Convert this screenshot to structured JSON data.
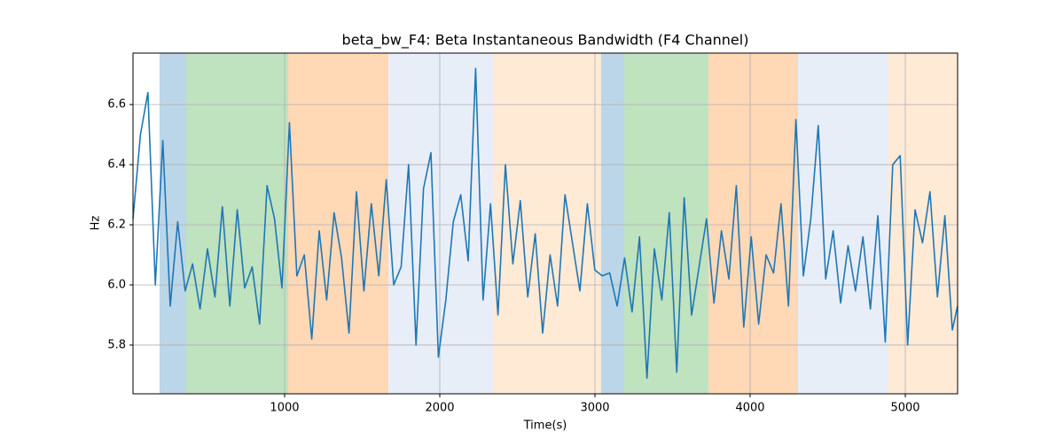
{
  "chart_data": {
    "type": "line",
    "title": "beta_bw_F4: Beta Instantaneous Bandwidth (F4 Channel)",
    "x_label": "Time(s)",
    "y_label": "Hz",
    "xlim": [
      23,
      5337
    ],
    "ylim": [
      5.638,
      6.771
    ],
    "xticks": [
      1000,
      2000,
      3000,
      4000,
      5000
    ],
    "yticks": [
      5.8,
      {
        "value": 6,
        "label": "6.0"
      },
      6.2,
      6.4,
      6.6
    ],
    "grid": true,
    "spans": [
      {
        "start": 194,
        "end": 366,
        "color": "#1f77b4",
        "alpha": 0.3
      },
      {
        "start": 366,
        "end": 1023,
        "color": "#2ca02c",
        "alpha": 0.3
      },
      {
        "start": 1023,
        "end": 1669,
        "color": "#ff7f0e",
        "alpha": 0.3
      },
      {
        "start": 1669,
        "end": 2343,
        "color": "#aec7e8",
        "alpha": 0.3
      },
      {
        "start": 2343,
        "end": 3040,
        "color": "#ffbb78",
        "alpha": 0.3
      },
      {
        "start": 3040,
        "end": 3189,
        "color": "#1f77b4",
        "alpha": 0.3
      },
      {
        "start": 3189,
        "end": 3731,
        "color": "#2ca02c",
        "alpha": 0.3
      },
      {
        "start": 3731,
        "end": 4309,
        "color": "#ff7f0e",
        "alpha": 0.3
      },
      {
        "start": 4309,
        "end": 4891,
        "color": "#aec7e8",
        "alpha": 0.3
      },
      {
        "start": 4891,
        "end": 5337,
        "color": "#ffbb78",
        "alpha": 0.3
      }
    ],
    "x": [
      23,
      71,
      119,
      167,
      215,
      263,
      311,
      359,
      407,
      455,
      503,
      551,
      599,
      647,
      695,
      743,
      791,
      839,
      887,
      935,
      983,
      1031,
      1079,
      1127,
      1175,
      1223,
      1271,
      1319,
      1367,
      1415,
      1463,
      1511,
      1559,
      1607,
      1655,
      1703,
      1751,
      1799,
      1847,
      1895,
      1943,
      1991,
      2039,
      2087,
      2135,
      2183,
      2231,
      2279,
      2327,
      2375,
      2423,
      2471,
      2519,
      2567,
      2615,
      2663,
      2711,
      2759,
      2807,
      2855,
      2903,
      2951,
      2999,
      3047,
      3095,
      3143,
      3191,
      3239,
      3287,
      3335,
      3383,
      3431,
      3479,
      3527,
      3575,
      3623,
      3671,
      3719,
      3767,
      3815,
      3863,
      3911,
      3959,
      4007,
      4055,
      4103,
      4151,
      4199,
      4247,
      4295,
      4343,
      4391,
      4439,
      4487,
      4535,
      4583,
      4631,
      4679,
      4727,
      4775,
      4823,
      4871,
      4919,
      4967,
      5015,
      5063,
      5111,
      5159,
      5207,
      5255,
      5303,
      5337
    ],
    "series": [
      {
        "color": "#1f77b4",
        "values": [
          6.22,
          6.5,
          6.64,
          6.0,
          6.48,
          5.93,
          6.21,
          5.98,
          6.07,
          5.92,
          6.12,
          5.96,
          6.26,
          5.93,
          6.25,
          5.99,
          6.06,
          5.87,
          6.33,
          6.22,
          5.99,
          6.54,
          6.03,
          6.1,
          5.82,
          6.18,
          5.95,
          6.24,
          6.09,
          5.84,
          6.31,
          5.98,
          6.27,
          6.03,
          6.35,
          6.0,
          6.06,
          6.4,
          5.8,
          6.32,
          6.44,
          5.76,
          5.95,
          6.21,
          6.3,
          6.08,
          6.72,
          5.95,
          6.27,
          5.9,
          6.4,
          6.07,
          6.28,
          5.96,
          6.17,
          5.84,
          6.1,
          5.93,
          6.3,
          6.14,
          5.98,
          6.27,
          6.05,
          6.03,
          6.04,
          5.93,
          6.09,
          5.91,
          6.16,
          5.69,
          6.12,
          5.95,
          6.24,
          5.71,
          6.29,
          5.9,
          6.06,
          6.22,
          5.94,
          6.18,
          6.02,
          6.33,
          5.86,
          6.16,
          5.87,
          6.1,
          6.04,
          6.27,
          5.93,
          6.55,
          6.03,
          6.22,
          6.53,
          6.02,
          6.18,
          5.94,
          6.13,
          5.98,
          6.16,
          5.92,
          6.23,
          5.81,
          6.4,
          6.43,
          5.8,
          6.25,
          6.14,
          6.31,
          5.96,
          6.23,
          5.85,
          5.93
        ]
      }
    ]
  }
}
